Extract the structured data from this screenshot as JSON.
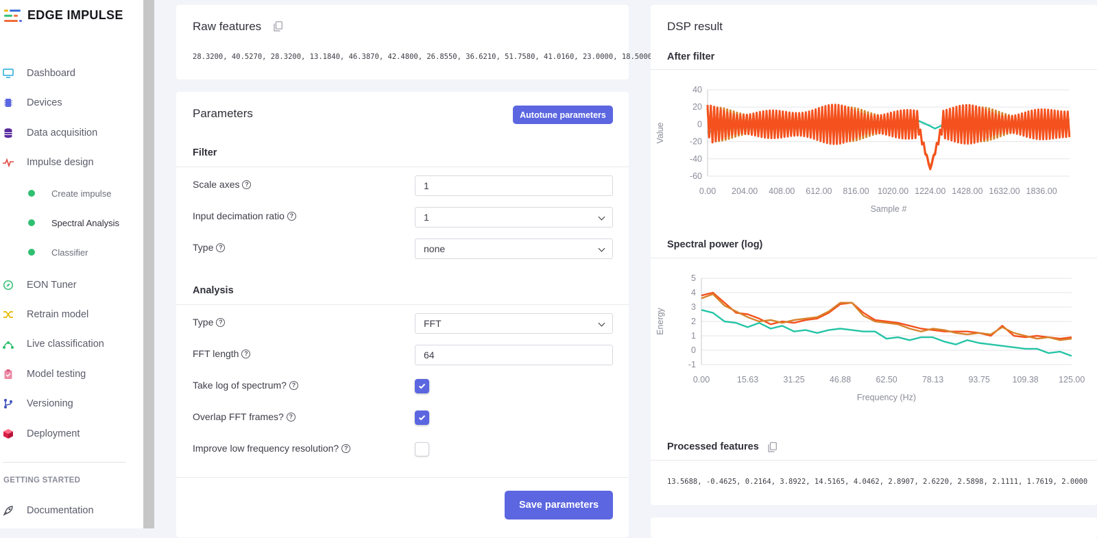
{
  "brand": {
    "name": "EDGE IMPULSE"
  },
  "sidebar": {
    "items": [
      {
        "label": "Dashboard",
        "icon": "monitor-icon"
      },
      {
        "label": "Devices",
        "icon": "chip-icon"
      },
      {
        "label": "Data acquisition",
        "icon": "database-icon"
      },
      {
        "label": "Impulse design",
        "icon": "pulse-icon"
      },
      {
        "label": "EON Tuner",
        "icon": "compass-icon"
      },
      {
        "label": "Retrain model",
        "icon": "shuffle-icon"
      },
      {
        "label": "Live classification",
        "icon": "nodes-icon"
      },
      {
        "label": "Model testing",
        "icon": "clipboard-check-icon"
      },
      {
        "label": "Versioning",
        "icon": "branch-icon"
      },
      {
        "label": "Deployment",
        "icon": "cube-icon"
      }
    ],
    "sub_items": [
      {
        "label": "Create impulse"
      },
      {
        "label": "Spectral Analysis"
      },
      {
        "label": "Classifier"
      }
    ],
    "section": "GETTING STARTED",
    "section_items": [
      {
        "label": "Documentation",
        "icon": "rocket-icon"
      }
    ]
  },
  "raw": {
    "title": "Raw features",
    "values": "28.3200, 40.5270, 28.3200, 13.1840, 46.3870, 42.4800, 26.8550, 36.6210, 51.7580, 41.0160, 23.0000, 18.5000"
  },
  "params": {
    "title": "Parameters",
    "autotune": "Autotune parameters",
    "filter_title": "Filter",
    "scale_axes": {
      "label": "Scale axes",
      "value": "1"
    },
    "decimation": {
      "label": "Input decimation ratio",
      "value": "1"
    },
    "filter_type": {
      "label": "Type",
      "value": "none"
    },
    "analysis_title": "Analysis",
    "analysis_type": {
      "label": "Type",
      "value": "FFT"
    },
    "fft_length": {
      "label": "FFT length",
      "value": "64"
    },
    "take_log": {
      "label": "Take log of spectrum?",
      "checked": true
    },
    "overlap": {
      "label": "Overlap FFT frames?",
      "checked": true
    },
    "improve_low": {
      "label": "Improve low frequency resolution?",
      "checked": false
    },
    "save": "Save parameters"
  },
  "dsp": {
    "title": "DSP result",
    "after_filter": "After filter",
    "spectral": "Spectral power (log)",
    "processed_title": "Processed features",
    "processed_values": "13.5688, -0.4625, 0.2164, 3.8922, 14.5165, 4.0462, 2.8907, 2.6220, 2.5898, 2.1111, 1.7619, 2.0000"
  },
  "colors": {
    "accent": "#5b66e0",
    "orange": "#f4511e",
    "brown": "#d9822b",
    "teal": "#26c4a6"
  },
  "chart_data": [
    {
      "type": "line",
      "title": "After filter",
      "xlabel": "Sample #",
      "ylabel": "Value",
      "xlim": [
        0,
        1990
      ],
      "ylim": [
        -60,
        40
      ],
      "x_ticks": [
        "0.00",
        "204.00",
        "408.00",
        "612.00",
        "816.00",
        "1020.00",
        "1224.00",
        "1428.00",
        "1632.00",
        "1836.00"
      ],
      "y_ticks": [
        "40",
        "20",
        "0",
        "-20",
        "-40",
        "-60"
      ],
      "series": [
        {
          "color": "#26c4a6",
          "points": [
            [
              0,
              -10
            ],
            [
              100,
              0
            ],
            [
              300,
              -2
            ],
            [
              600,
              3
            ],
            [
              800,
              -1
            ],
            [
              1000,
              2
            ],
            [
              1150,
              5
            ],
            [
              1224,
              -2
            ],
            [
              1250,
              -5
            ],
            [
              1300,
              0
            ],
            [
              1500,
              3
            ],
            [
              1700,
              -2
            ],
            [
              1990,
              5
            ]
          ]
        },
        {
          "color": "#d9822b",
          "amplitude": 18,
          "center": 0,
          "dip": {
            "x": 1224,
            "y": -50
          }
        },
        {
          "color": "#f4511e",
          "amplitude": 21,
          "center": 0,
          "dip": {
            "x": 1224,
            "y": -52
          }
        }
      ]
    },
    {
      "type": "line",
      "title": "Spectral power (log)",
      "xlabel": "Frequency (Hz)",
      "ylabel": "Energy",
      "xlim": [
        0,
        125
      ],
      "ylim": [
        -1,
        5
      ],
      "x_ticks": [
        "0.00",
        "15.63",
        "31.25",
        "46.88",
        "62.50",
        "78.13",
        "93.75",
        "109.38",
        "125.00"
      ],
      "y_ticks": [
        "5",
        "4",
        "3",
        "2",
        "1",
        "0",
        "-1"
      ],
      "series": [
        {
          "color": "#f4511e",
          "points": [
            [
              0,
              3.8
            ],
            [
              3.9,
              4.0
            ],
            [
              7.8,
              3.3
            ],
            [
              11.7,
              2.6
            ],
            [
              15.6,
              2.5
            ],
            [
              19.5,
              2.2
            ],
            [
              23.4,
              1.8
            ],
            [
              27.3,
              2.0
            ],
            [
              31.3,
              1.9
            ],
            [
              35.2,
              2.1
            ],
            [
              39.1,
              2.2
            ],
            [
              43,
              2.6
            ],
            [
              46.9,
              3.2
            ],
            [
              50.8,
              3.3
            ],
            [
              54.7,
              2.6
            ],
            [
              58.6,
              2.1
            ],
            [
              62.5,
              2.0
            ],
            [
              66.4,
              1.9
            ],
            [
              70.3,
              1.7
            ],
            [
              74.2,
              1.5
            ],
            [
              78.1,
              1.4
            ],
            [
              82,
              1.3
            ],
            [
              85.9,
              1.3
            ],
            [
              89.8,
              1.3
            ],
            [
              93.8,
              1.2
            ],
            [
              97.7,
              1.0
            ],
            [
              101.6,
              1.7
            ],
            [
              105.5,
              1.0
            ],
            [
              109.4,
              0.9
            ],
            [
              113.3,
              1.0
            ],
            [
              117.2,
              0.9
            ],
            [
              121.1,
              0.8
            ],
            [
              125,
              0.9
            ]
          ]
        },
        {
          "color": "#d9822b",
          "points": [
            [
              0,
              3.6
            ],
            [
              3.9,
              3.9
            ],
            [
              7.8,
              3.1
            ],
            [
              11.7,
              2.7
            ],
            [
              15.6,
              2.3
            ],
            [
              19.5,
              2.0
            ],
            [
              23.4,
              2.1
            ],
            [
              27.3,
              1.9
            ],
            [
              31.3,
              2.1
            ],
            [
              35.2,
              2.2
            ],
            [
              39.1,
              2.3
            ],
            [
              43,
              2.7
            ],
            [
              46.9,
              3.3
            ],
            [
              50.8,
              3.3
            ],
            [
              54.7,
              2.4
            ],
            [
              58.6,
              2.0
            ],
            [
              62.5,
              1.9
            ],
            [
              66.4,
              1.8
            ],
            [
              70.3,
              1.5
            ],
            [
              74.2,
              1.3
            ],
            [
              78.1,
              1.5
            ],
            [
              82,
              1.4
            ],
            [
              85.9,
              1.2
            ],
            [
              89.8,
              1.1
            ],
            [
              93.8,
              1.2
            ],
            [
              97.7,
              1.1
            ],
            [
              101.6,
              1.6
            ],
            [
              105.5,
              1.2
            ],
            [
              109.4,
              1.0
            ],
            [
              113.3,
              0.8
            ],
            [
              117.2,
              0.9
            ],
            [
              121.1,
              0.7
            ],
            [
              125,
              0.8
            ]
          ]
        },
        {
          "color": "#26c4a6",
          "points": [
            [
              0,
              2.8
            ],
            [
              3.9,
              2.6
            ],
            [
              7.8,
              2.0
            ],
            [
              11.7,
              1.9
            ],
            [
              15.6,
              1.6
            ],
            [
              19.5,
              1.9
            ],
            [
              23.4,
              1.5
            ],
            [
              27.3,
              1.7
            ],
            [
              31.3,
              1.3
            ],
            [
              35.2,
              1.4
            ],
            [
              39.1,
              1.2
            ],
            [
              43,
              1.4
            ],
            [
              46.9,
              1.5
            ],
            [
              50.8,
              1.4
            ],
            [
              54.7,
              1.3
            ],
            [
              58.6,
              1.3
            ],
            [
              62.5,
              0.8
            ],
            [
              66.4,
              0.9
            ],
            [
              70.3,
              0.7
            ],
            [
              74.2,
              0.9
            ],
            [
              78.1,
              0.9
            ],
            [
              82,
              0.6
            ],
            [
              85.9,
              0.4
            ],
            [
              89.8,
              0.7
            ],
            [
              93.8,
              0.5
            ],
            [
              97.7,
              0.4
            ],
            [
              101.6,
              0.3
            ],
            [
              105.5,
              0.2
            ],
            [
              109.4,
              0.1
            ],
            [
              113.3,
              0.1
            ],
            [
              117.2,
              -0.2
            ],
            [
              121.1,
              -0.1
            ],
            [
              125,
              -0.4
            ]
          ]
        }
      ]
    }
  ]
}
